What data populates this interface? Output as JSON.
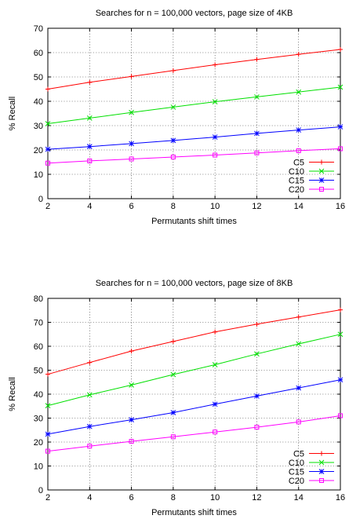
{
  "chart_data": [
    {
      "type": "line",
      "title": "Searches for n = 100,000 vectors, page size of 4KB",
      "xlabel": "Permutants shift times",
      "ylabel": "% Recall",
      "x": [
        2,
        4,
        6,
        8,
        10,
        12,
        14,
        16
      ],
      "xlim": [
        2,
        16
      ],
      "ylim": [
        0,
        70
      ],
      "xticks": [
        "2",
        "4",
        "6",
        "8",
        "10",
        "12",
        "14",
        "16"
      ],
      "yticks": [
        "0",
        "10",
        "20",
        "30",
        "40",
        "50",
        "60",
        "70"
      ],
      "grid": true,
      "legend_position": "bottom-right",
      "series": [
        {
          "name": "C5",
          "color": "#ff0000",
          "marker": "plus",
          "values": [
            45,
            47.8,
            50.2,
            52.6,
            55,
            57.2,
            59.3,
            61.3
          ]
        },
        {
          "name": "C10",
          "color": "#00e000",
          "marker": "cross",
          "values": [
            30.8,
            33.1,
            35.4,
            37.6,
            39.8,
            41.8,
            43.8,
            45.8
          ]
        },
        {
          "name": "C15",
          "color": "#0000ff",
          "marker": "star",
          "values": [
            20.3,
            21.4,
            22.6,
            23.9,
            25.3,
            26.8,
            28.2,
            29.5
          ]
        },
        {
          "name": "C20",
          "color": "#ff00ff",
          "marker": "square",
          "values": [
            14.6,
            15.5,
            16.3,
            17.1,
            17.9,
            18.8,
            19.7,
            20.5
          ]
        }
      ]
    },
    {
      "type": "line",
      "title": "Searches for n = 100,000 vectors, page size of 8KB",
      "xlabel": "Permutants shift times",
      "ylabel": "% Recall",
      "x": [
        2,
        4,
        6,
        8,
        10,
        12,
        14,
        16
      ],
      "xlim": [
        2,
        16
      ],
      "ylim": [
        0,
        80
      ],
      "xticks": [
        "2",
        "4",
        "6",
        "8",
        "10",
        "12",
        "14",
        "16"
      ],
      "yticks": [
        "0",
        "10",
        "20",
        "30",
        "40",
        "50",
        "60",
        "70",
        "80"
      ],
      "grid": true,
      "legend_position": "bottom-right",
      "series": [
        {
          "name": "C5",
          "color": "#ff0000",
          "marker": "plus",
          "values": [
            48.3,
            53.2,
            58,
            62,
            66,
            69.2,
            72.2,
            75.2
          ]
        },
        {
          "name": "C10",
          "color": "#00e000",
          "marker": "cross",
          "values": [
            35.2,
            39.7,
            43.8,
            48.2,
            52.3,
            56.8,
            61,
            65
          ]
        },
        {
          "name": "C15",
          "color": "#0000ff",
          "marker": "star",
          "values": [
            23.3,
            26.5,
            29.3,
            32.3,
            35.8,
            39.2,
            42.6,
            46
          ]
        },
        {
          "name": "C20",
          "color": "#ff00ff",
          "marker": "square",
          "values": [
            16.2,
            18.3,
            20.3,
            22.2,
            24.2,
            26.2,
            28.4,
            31
          ]
        }
      ]
    }
  ]
}
